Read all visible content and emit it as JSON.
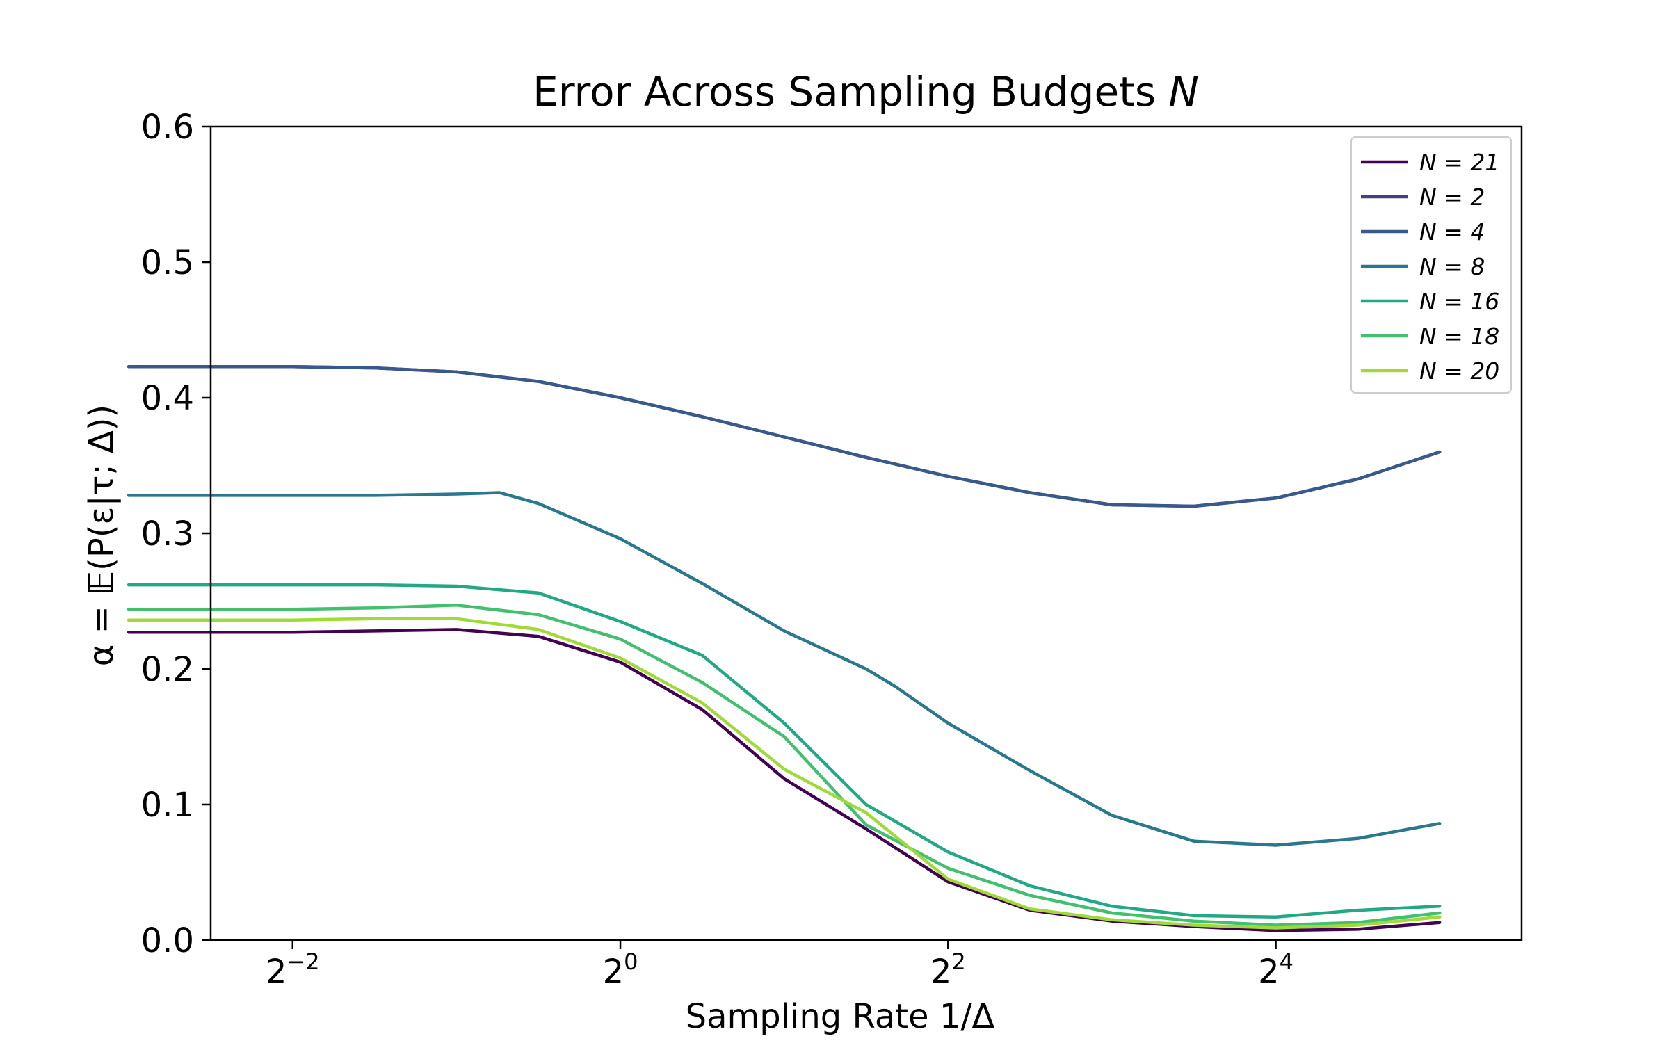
{
  "chart_data": {
    "type": "line",
    "title": "Error Across Sampling Budgets ",
    "title_var": "N",
    "xlabel": "Sampling Rate 1/Δ",
    "ylabel": "α = 𝔼(P(ε|τ; Δ))",
    "x_scale": "log2",
    "xlim": [
      0.1768,
      45.25
    ],
    "ylim": [
      0.0,
      0.6
    ],
    "x_ticks": [
      {
        "value": 0.25,
        "base": "2",
        "exp": "−2"
      },
      {
        "value": 1,
        "base": "2",
        "exp": "0"
      },
      {
        "value": 4,
        "base": "2",
        "exp": "2"
      },
      {
        "value": 16,
        "base": "2",
        "exp": "4"
      }
    ],
    "y_ticks": [
      "0.0",
      "0.1",
      "0.2",
      "0.3",
      "0.4",
      "0.5",
      "0.6"
    ],
    "grid": false,
    "legend_position": "top-right",
    "series": [
      {
        "name": "N = 21",
        "color": "#440154",
        "x": [
          0.125,
          0.177,
          0.25,
          0.354,
          0.5,
          0.707,
          1,
          1.414,
          2,
          2.828,
          4,
          5.657,
          8,
          11.31,
          16,
          22.63,
          32
        ],
        "y": [
          0.227,
          0.227,
          0.227,
          0.228,
          0.229,
          0.224,
          0.205,
          0.17,
          0.119,
          0.082,
          0.043,
          0.022,
          0.014,
          0.01,
          0.007,
          0.008,
          0.013
        ]
      },
      {
        "name": "N = 2",
        "color": "#433e85",
        "x": [
          0.125,
          0.177,
          0.25,
          0.354,
          0.5,
          0.707,
          1,
          1.414,
          2,
          2.828,
          4,
          5.657,
          8,
          11.31,
          16,
          22.63,
          32
        ],
        "y": [
          0.423,
          0.423,
          0.423,
          0.422,
          0.419,
          0.412,
          0.4,
          0.386,
          0.371,
          0.356,
          0.342,
          0.33,
          0.321,
          0.32,
          0.326,
          0.34,
          0.36
        ]
      },
      {
        "name": "N = 4",
        "color": "#38598c",
        "x": [
          0.125,
          0.177,
          0.25,
          0.354,
          0.5,
          0.707,
          1,
          1.414,
          2,
          2.828,
          4,
          5.657,
          8,
          11.31,
          16,
          22.63,
          32
        ],
        "y": [
          0.423,
          0.423,
          0.423,
          0.422,
          0.419,
          0.412,
          0.4,
          0.386,
          0.371,
          0.356,
          0.342,
          0.33,
          0.321,
          0.32,
          0.326,
          0.34,
          0.36
        ]
      },
      {
        "name": "N = 8",
        "color": "#2a788e",
        "x": [
          0.125,
          0.177,
          0.25,
          0.354,
          0.5,
          0.6,
          0.707,
          1,
          1.414,
          2,
          2.828,
          3.2,
          4,
          5.657,
          8,
          11.31,
          16,
          22.63,
          32
        ],
        "y": [
          0.328,
          0.328,
          0.328,
          0.328,
          0.329,
          0.33,
          0.322,
          0.296,
          0.263,
          0.228,
          0.2,
          0.187,
          0.16,
          0.125,
          0.092,
          0.073,
          0.07,
          0.075,
          0.086
        ]
      },
      {
        "name": "N = 16",
        "color": "#22a884",
        "x": [
          0.125,
          0.177,
          0.25,
          0.354,
          0.5,
          0.707,
          1,
          1.414,
          2,
          2.828,
          4,
          5.657,
          8,
          11.31,
          16,
          22.63,
          32
        ],
        "y": [
          0.262,
          0.262,
          0.262,
          0.262,
          0.261,
          0.256,
          0.235,
          0.21,
          0.16,
          0.1,
          0.065,
          0.04,
          0.025,
          0.018,
          0.017,
          0.022,
          0.025
        ]
      },
      {
        "name": "N = 18",
        "color": "#44bf70",
        "x": [
          0.125,
          0.177,
          0.25,
          0.354,
          0.5,
          0.707,
          1,
          1.414,
          2,
          2.828,
          4,
          5.657,
          8,
          11.31,
          16,
          22.63,
          32
        ],
        "y": [
          0.244,
          0.244,
          0.244,
          0.245,
          0.247,
          0.24,
          0.222,
          0.19,
          0.15,
          0.085,
          0.053,
          0.033,
          0.02,
          0.014,
          0.011,
          0.013,
          0.02
        ]
      },
      {
        "name": "N = 20",
        "color": "#a0da39",
        "x": [
          0.125,
          0.177,
          0.25,
          0.354,
          0.5,
          0.707,
          1,
          1.414,
          2,
          2.828,
          4,
          5.657,
          8,
          11.31,
          16,
          22.63,
          32
        ],
        "y": [
          0.236,
          0.236,
          0.236,
          0.237,
          0.237,
          0.229,
          0.208,
          0.175,
          0.126,
          0.094,
          0.045,
          0.023,
          0.015,
          0.011,
          0.009,
          0.011,
          0.017
        ]
      }
    ]
  }
}
